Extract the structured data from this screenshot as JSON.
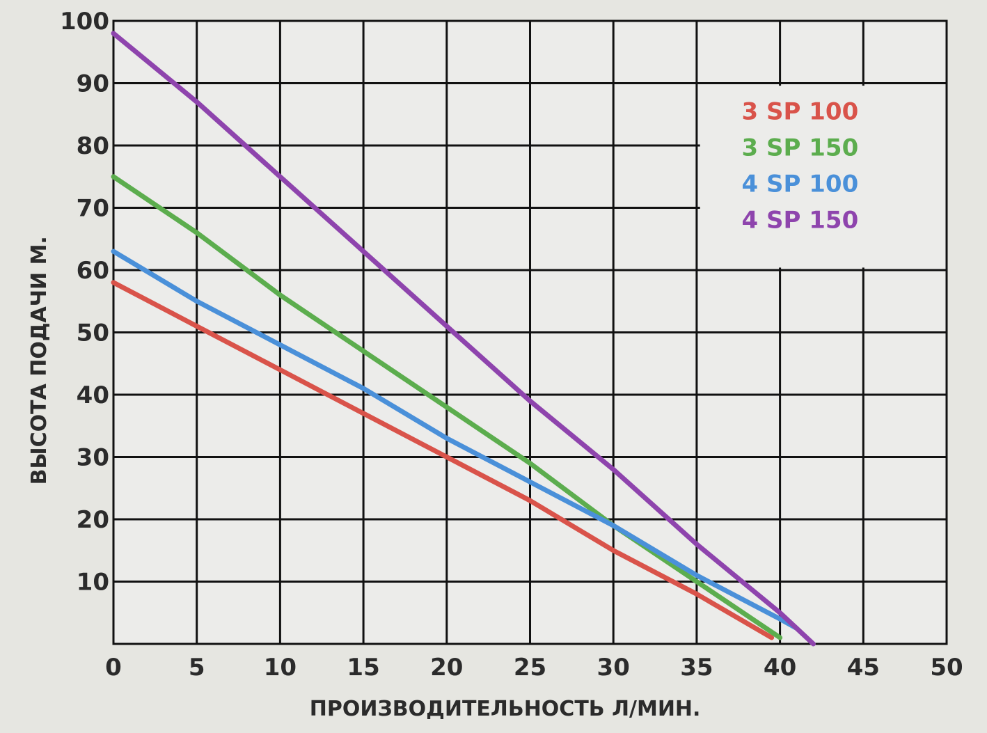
{
  "chart_data": {
    "type": "line",
    "xlabel": "ПРОИЗВОДИТЕЛЬНОСТЬ Л/МИН.",
    "ylabel": "ВЫСОТА ПОДАЧИ М.",
    "xlim": [
      0,
      50
    ],
    "ylim": [
      0,
      100
    ],
    "x_ticks": [
      {
        "value": 0,
        "label": "0"
      },
      {
        "value": 5,
        "label": "5"
      },
      {
        "value": 10,
        "label": "10"
      },
      {
        "value": 15,
        "label": "15"
      },
      {
        "value": 20,
        "label": "20"
      },
      {
        "value": 25,
        "label": "25"
      },
      {
        "value": 30,
        "label": "30"
      },
      {
        "value": 35,
        "label": "35"
      },
      {
        "value": 40,
        "label": "40"
      },
      {
        "value": 45,
        "label": "45"
      },
      {
        "value": 50,
        "label": "50"
      }
    ],
    "y_ticks": [
      {
        "value": 10,
        "label": "10"
      },
      {
        "value": 20,
        "label": "20"
      },
      {
        "value": 30,
        "label": "30"
      },
      {
        "value": 40,
        "label": "40"
      },
      {
        "value": 50,
        "label": "50"
      },
      {
        "value": 60,
        "label": "60"
      },
      {
        "value": 70,
        "label": "70"
      },
      {
        "value": 80,
        "label": "80"
      },
      {
        "value": 90,
        "label": "90"
      },
      {
        "value": 100,
        "label": "100"
      }
    ],
    "grid": true,
    "legend": "top-right",
    "series": [
      {
        "name": "3 SP 100",
        "color": "#d9534a",
        "points": [
          [
            0,
            58
          ],
          [
            5,
            51
          ],
          [
            10,
            44
          ],
          [
            15,
            37
          ],
          [
            20,
            30
          ],
          [
            25,
            23
          ],
          [
            30,
            15
          ],
          [
            35,
            8
          ],
          [
            39.5,
            1
          ]
        ]
      },
      {
        "name": "3 SP 150",
        "color": "#5cad4e",
        "points": [
          [
            0,
            75
          ],
          [
            5,
            66
          ],
          [
            10,
            56
          ],
          [
            15,
            47
          ],
          [
            20,
            38
          ],
          [
            25,
            29
          ],
          [
            30,
            19
          ],
          [
            35,
            10
          ],
          [
            40,
            1
          ]
        ]
      },
      {
        "name": "4 SP 100",
        "color": "#4a90d9",
        "points": [
          [
            0,
            63
          ],
          [
            5,
            55
          ],
          [
            10,
            48
          ],
          [
            15,
            41
          ],
          [
            20,
            33
          ],
          [
            25,
            26
          ],
          [
            30,
            19
          ],
          [
            35,
            11
          ],
          [
            40,
            4
          ],
          [
            41,
            2.5
          ]
        ]
      },
      {
        "name": "4 SP 150",
        "color": "#8e44ad",
        "points": [
          [
            0,
            98
          ],
          [
            5,
            87
          ],
          [
            10,
            75
          ],
          [
            15,
            63
          ],
          [
            20,
            51
          ],
          [
            25,
            39
          ],
          [
            30,
            28
          ],
          [
            35,
            16
          ],
          [
            40,
            5
          ],
          [
            42,
            0
          ]
        ]
      }
    ]
  }
}
